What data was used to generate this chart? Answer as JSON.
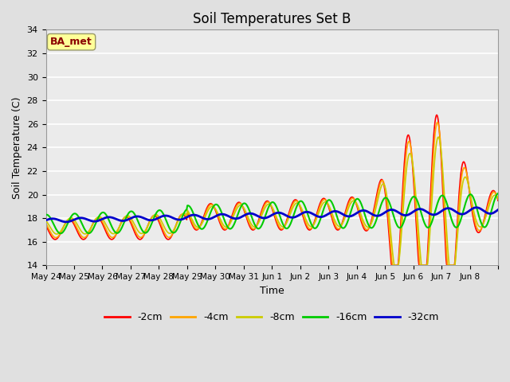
{
  "title": "Soil Temperatures Set B",
  "xlabel": "Time",
  "ylabel": "Soil Temperature (C)",
  "ylim": [
    14,
    34
  ],
  "yticks": [
    14,
    16,
    18,
    20,
    22,
    24,
    26,
    28,
    30,
    32,
    34
  ],
  "annotation_text": "BA_met",
  "annotation_color": "#8B0000",
  "annotation_bg": "#FFFF99",
  "line_colors": {
    "-2cm": "#FF0000",
    "-4cm": "#FFA500",
    "-8cm": "#CCCC00",
    "-16cm": "#00CC00",
    "-32cm": "#0000CC"
  },
  "line_widths": {
    "-2cm": 1.2,
    "-4cm": 1.2,
    "-8cm": 1.2,
    "-16cm": 1.5,
    "-32cm": 2.0
  },
  "background_color": "#E0E0E0",
  "plot_bg_color": "#EBEBEB",
  "grid_color": "#FFFFFF",
  "x_labels": [
    "May 24",
    "May 25",
    "May 26",
    "May 27",
    "May 28",
    "May 29",
    "May 30",
    "May 31",
    "Jun 1",
    "Jun 2",
    "Jun 3",
    "Jun 4",
    "Jun 5",
    "Jun 6",
    "Jun 7",
    "Jun 8"
  ]
}
